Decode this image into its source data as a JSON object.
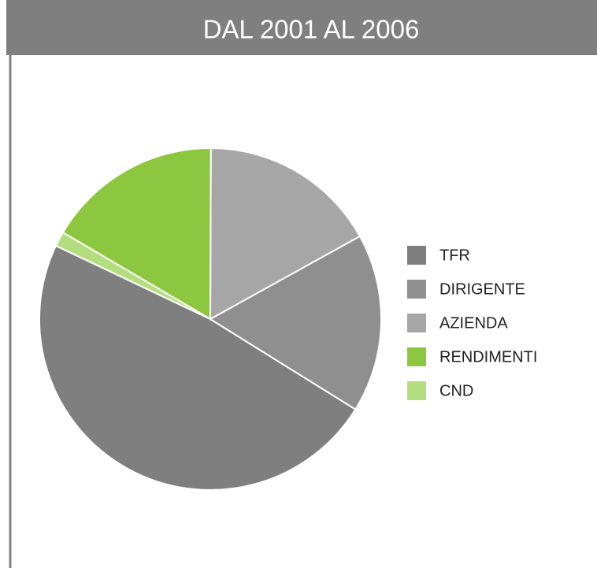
{
  "chart_data": {
    "type": "pie",
    "title": "DAL 2001 AL 2006",
    "categories": [
      "TFR",
      "DIRIGENTE",
      "AZIENDA",
      "RENDIMENTI",
      "CND"
    ],
    "values": [
      48.2,
      16.9,
      16.9,
      16.6,
      1.4
    ],
    "colors": [
      "#7f7f7f",
      "#8f8f8f",
      "#a6a6a6",
      "#8dc63f",
      "#b3de7f"
    ],
    "legend": "right"
  }
}
